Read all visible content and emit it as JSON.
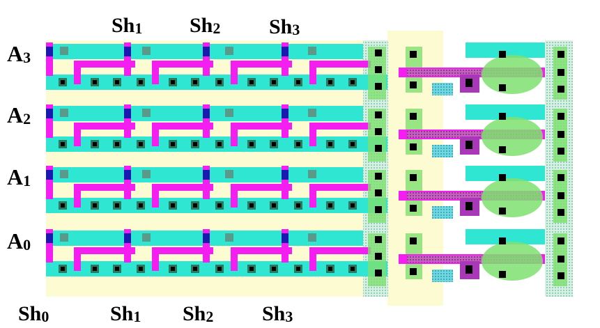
{
  "diagram": {
    "top_labels": [
      {
        "base": "Sh",
        "sub": "1"
      },
      {
        "base": "Sh",
        "sub": "2"
      },
      {
        "base": "Sh",
        "sub": "3"
      }
    ],
    "bottom_labels": [
      {
        "base": "Sh",
        "sub": "0"
      },
      {
        "base": "Sh",
        "sub": "1"
      },
      {
        "base": "Sh",
        "sub": "2"
      },
      {
        "base": "Sh",
        "sub": "3"
      }
    ],
    "row_labels": [
      {
        "base": "A",
        "sub": "3"
      },
      {
        "base": "A",
        "sub": "2"
      },
      {
        "base": "A",
        "sub": "1"
      },
      {
        "base": "A",
        "sub": "0"
      }
    ],
    "colors": {
      "diffusion": "#fdfbd2",
      "poly": "#2fe6d2",
      "metal": "#f51ef0",
      "contact": "#000000",
      "via": "#1a1ab0",
      "well": "#7fe070",
      "driver_metal": "#a838b8",
      "contact_cut": "#3cc4b0"
    }
  }
}
